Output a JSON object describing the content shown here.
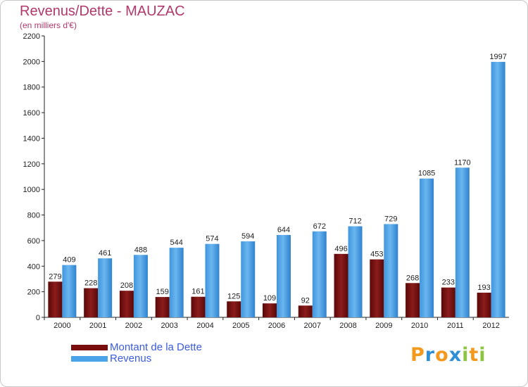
{
  "chart_data": {
    "type": "bar",
    "title": "Revenus/Dette - MAUZAC",
    "subtitle": "(en milliers d'€)",
    "categories": [
      "2000",
      "2001",
      "2002",
      "2003",
      "2004",
      "2005",
      "2006",
      "2007",
      "2008",
      "2009",
      "2010",
      "2011",
      "2012"
    ],
    "series": [
      {
        "name": "Montant de la Dette",
        "color": "#7a0e0e",
        "values": [
          279,
          228,
          208,
          159,
          161,
          125,
          109,
          92,
          496,
          453,
          268,
          233,
          193
        ]
      },
      {
        "name": "Revenus",
        "color": "#4aa3e8",
        "values": [
          409,
          461,
          488,
          544,
          574,
          594,
          644,
          672,
          712,
          729,
          1085,
          1170,
          1997
        ]
      }
    ],
    "yticks": [
      0,
      200,
      400,
      600,
      800,
      1000,
      1200,
      1400,
      1600,
      1800,
      2000,
      2200
    ],
    "ylim": [
      0,
      2200
    ],
    "grid": false,
    "legend": "bottom-left"
  },
  "legend": {
    "items": [
      {
        "label": "Montant de la Dette",
        "color": "#7a0e0e"
      },
      {
        "label": "Revenus",
        "color": "#4aa3e8"
      }
    ]
  },
  "logo": {
    "letters": [
      "P",
      "r",
      "o",
      "x",
      "i",
      "t",
      "i"
    ],
    "colors": [
      "#f39a1e",
      "#2e8fd6",
      "#f39a1e",
      "#2e8fd6",
      "#8cc63f",
      "#f39a1e",
      "#8cc63f"
    ]
  }
}
